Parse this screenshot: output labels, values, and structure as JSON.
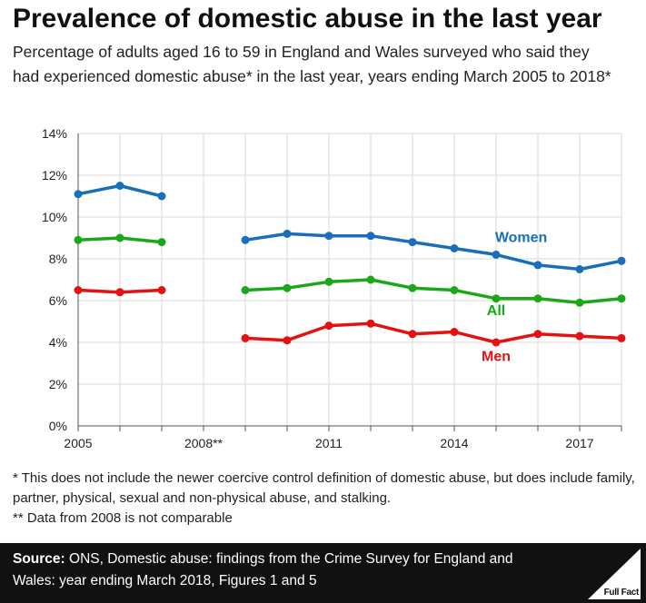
{
  "title": "Prevalence of domestic abuse in the last year",
  "subtitle": "Percentage of adults aged 16 to 59 in England and Wales surveyed who said they had experienced domestic abuse* in the last year, years ending March 2005 to 2018*",
  "footnotes": [
    "* This does not include the newer coercive control definition of domestic abuse, but does include family, partner, physical, sexual and non-physical abuse, and stalking.",
    "** Data from 2008 is not comparable"
  ],
  "footer": {
    "source_label": "Source:",
    "source_text": "ONS, Domestic abuse: findings from the Crime Survey for England and Wales: year ending March 2018, Figures 1 and 5",
    "logo_text": "Full Fact"
  },
  "chart_data": {
    "type": "line",
    "title": "Prevalence of domestic abuse in the last year",
    "xlabel": "",
    "ylabel": "",
    "x": [
      2005,
      2006,
      2007,
      2008,
      2009,
      2010,
      2011,
      2012,
      2013,
      2014,
      2015,
      2016,
      2017,
      2018
    ],
    "x_ticks": [
      {
        "value": 2005,
        "label": "2005"
      },
      {
        "value": 2008,
        "label": "2008**"
      },
      {
        "value": 2011,
        "label": "2011"
      },
      {
        "value": 2014,
        "label": "2014"
      },
      {
        "value": 2017,
        "label": "2017"
      }
    ],
    "xlim": [
      2005,
      2018
    ],
    "ylim": [
      0,
      14
    ],
    "y_ticks": [
      0,
      2,
      4,
      6,
      8,
      10,
      12,
      14
    ],
    "y_tick_labels": [
      "0%",
      "2%",
      "4%",
      "6%",
      "8%",
      "10%",
      "12%",
      "14%"
    ],
    "grid": true,
    "legend": "inline labels",
    "series": [
      {
        "name": "Women",
        "color": "#1a6fb8",
        "label_at": 2015.6,
        "label_y": 8.8,
        "values": [
          11.1,
          11.5,
          11.0,
          null,
          8.9,
          9.2,
          9.1,
          9.1,
          8.8,
          8.5,
          8.2,
          7.7,
          7.5,
          7.9
        ]
      },
      {
        "name": "All",
        "color": "#1aa81a",
        "label_at": 2015.0,
        "label_y": 5.3,
        "values": [
          8.9,
          9.0,
          8.8,
          null,
          6.5,
          6.6,
          6.9,
          7.0,
          6.6,
          6.5,
          6.1,
          6.1,
          5.9,
          6.1
        ]
      },
      {
        "name": "Men",
        "color": "#e31212",
        "label_at": 2015.0,
        "label_y": 3.1,
        "values": [
          6.5,
          6.4,
          6.5,
          null,
          4.2,
          4.1,
          4.8,
          4.9,
          4.4,
          4.5,
          4.0,
          4.4,
          4.3,
          4.2
        ]
      }
    ]
  }
}
